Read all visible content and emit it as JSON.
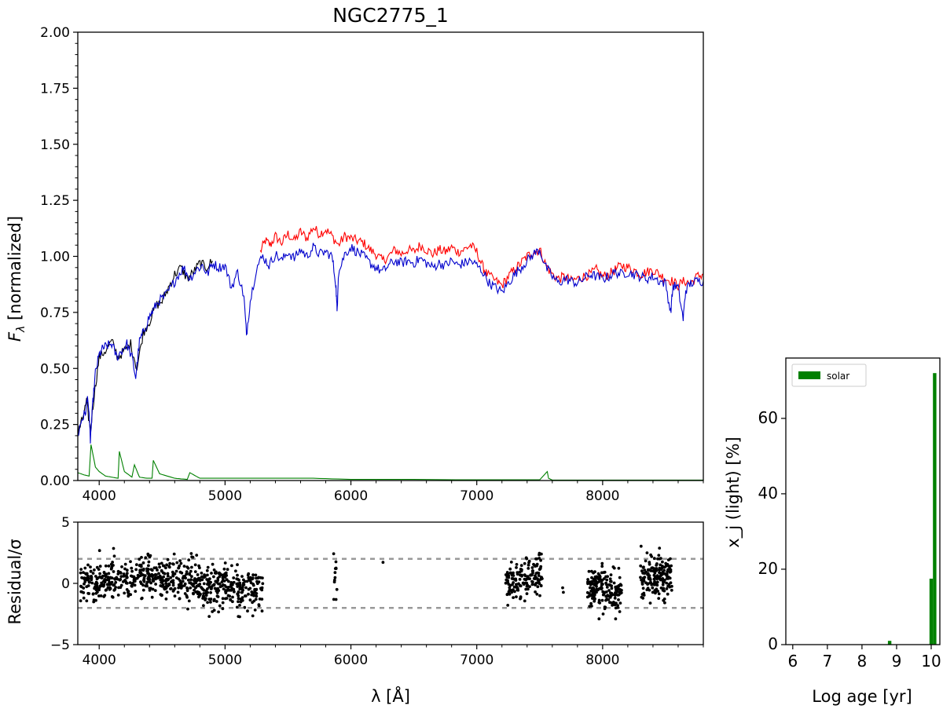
{
  "chart_data": [
    {
      "type": "line",
      "title": "NGC2775_1",
      "xlabel": "",
      "ylabel": "F_λ [normalized]",
      "xlim": [
        3830,
        8800
      ],
      "ylim": [
        0,
        2.0
      ],
      "xticks": [
        4000,
        5000,
        6000,
        7000,
        8000
      ],
      "yticks": [
        0.0,
        0.25,
        0.5,
        0.75,
        1.0,
        1.25,
        1.5,
        1.75,
        2.0
      ],
      "grid": false,
      "series": [
        {
          "color": "#ff0000",
          "role": "observed spectrum (shown where it differs from model)",
          "x": [
            5280,
            5320,
            5360,
            5400,
            5450,
            5500,
            5550,
            5600,
            5650,
            5700,
            5750,
            5800,
            5850,
            5900,
            5950,
            6000,
            6050,
            6100,
            6150,
            6200,
            6250,
            6300,
            6350,
            6400,
            6450,
            6500,
            6550,
            6600,
            6650,
            6700,
            6750,
            6800,
            6850,
            6900,
            6950,
            7000,
            7050,
            7080,
            7150,
            7200,
            7250,
            7300,
            7350,
            7400,
            7450,
            7500,
            7550,
            7600,
            7650,
            7700,
            7750,
            7800,
            7850,
            7900,
            7950,
            8000,
            8050,
            8100,
            8150,
            8200,
            8250,
            8300,
            8350,
            8400,
            8450,
            8500,
            8550,
            8600,
            8650,
            8700,
            8750,
            8800
          ],
          "y": [
            1.02,
            1.07,
            1.05,
            1.09,
            1.06,
            1.1,
            1.07,
            1.11,
            1.08,
            1.13,
            1.1,
            1.12,
            1.09,
            1.05,
            1.09,
            1.08,
            1.07,
            1.06,
            1.03,
            1.01,
            0.98,
            1.0,
            1.03,
            1.01,
            1.03,
            1.02,
            1.05,
            1.03,
            1.01,
            1.03,
            1.02,
            1.04,
            1.02,
            1.03,
            1.05,
            1.02,
            0.95,
            0.92,
            0.89,
            0.87,
            0.91,
            0.94,
            0.97,
            1.0,
            1.02,
            1.03,
            0.96,
            0.92,
            0.9,
            0.91,
            0.89,
            0.9,
            0.91,
            0.92,
            0.94,
            0.91,
            0.92,
            0.94,
            0.96,
            0.95,
            0.94,
            0.92,
            0.93,
            0.94,
            0.92,
            0.9,
            0.89,
            0.87,
            0.89,
            0.88,
            0.91,
            0.92
          ]
        },
        {
          "color": "#000000",
          "role": "observed spectrum",
          "x": [
            3830,
            3860,
            3900,
            3930,
            3960,
            4000,
            4050,
            4100,
            4150,
            4200,
            4250,
            4300,
            4350,
            4400,
            4450,
            4500,
            4550,
            4600,
            4650,
            4700,
            4750,
            4800,
            4850,
            4900
          ],
          "y": [
            0.21,
            0.26,
            0.35,
            0.22,
            0.38,
            0.55,
            0.58,
            0.62,
            0.55,
            0.58,
            0.61,
            0.5,
            0.66,
            0.71,
            0.78,
            0.8,
            0.86,
            0.92,
            0.95,
            0.9,
            0.93,
            0.97,
            0.95,
            0.98
          ]
        },
        {
          "color": "#0000cc",
          "role": "model spectrum",
          "x": [
            3830,
            3860,
            3890,
            3910,
            3930,
            3950,
            3970,
            4000,
            4030,
            4060,
            4100,
            4140,
            4180,
            4220,
            4260,
            4290,
            4320,
            4350,
            4390,
            4430,
            4470,
            4520,
            4570,
            4620,
            4670,
            4720,
            4770,
            4820,
            4860,
            4900,
            4950,
            5000,
            5050,
            5100,
            5150,
            5170,
            5200,
            5250,
            5300,
            5350,
            5400,
            5450,
            5500,
            5550,
            5600,
            5650,
            5700,
            5750,
            5800,
            5850,
            5880,
            5890,
            5900,
            5950,
            6000,
            6050,
            6100,
            6150,
            6200,
            6250,
            6300,
            6350,
            6400,
            6450,
            6500,
            6550,
            6600,
            6650,
            6700,
            6750,
            6800,
            6850,
            6900,
            6950,
            7000,
            7050,
            7100,
            7150,
            7200,
            7250,
            7300,
            7350,
            7400,
            7450,
            7500,
            7550,
            7600,
            7650,
            7700,
            7750,
            7800,
            7850,
            7900,
            7950,
            8000,
            8050,
            8100,
            8150,
            8200,
            8250,
            8300,
            8350,
            8400,
            8450,
            8500,
            8540,
            8560,
            8600,
            8640,
            8660,
            8700,
            8750,
            8800
          ],
          "y": [
            0.2,
            0.27,
            0.3,
            0.38,
            0.18,
            0.35,
            0.48,
            0.56,
            0.59,
            0.6,
            0.61,
            0.55,
            0.58,
            0.61,
            0.55,
            0.46,
            0.62,
            0.66,
            0.72,
            0.76,
            0.8,
            0.82,
            0.86,
            0.91,
            0.95,
            0.9,
            0.94,
            0.96,
            0.92,
            0.97,
            0.95,
            0.96,
            0.86,
            0.93,
            0.82,
            0.65,
            0.8,
            0.95,
            1.0,
            0.96,
            1.01,
            0.98,
            1.02,
            0.99,
            1.03,
            1.0,
            1.04,
            1.01,
            1.02,
            1.0,
            0.88,
            0.75,
            0.92,
            1.01,
            1.04,
            1.02,
            1.0,
            0.97,
            0.95,
            0.93,
            0.96,
            0.98,
            0.97,
            0.98,
            0.97,
            0.99,
            0.97,
            0.95,
            0.97,
            0.96,
            0.98,
            0.96,
            0.97,
            0.98,
            0.96,
            0.93,
            0.88,
            0.86,
            0.84,
            0.88,
            0.92,
            0.95,
            0.98,
            1.01,
            1.03,
            0.95,
            0.91,
            0.88,
            0.9,
            0.89,
            0.88,
            0.9,
            0.92,
            0.91,
            0.9,
            0.91,
            0.93,
            0.92,
            0.93,
            0.92,
            0.91,
            0.9,
            0.91,
            0.89,
            0.88,
            0.75,
            0.87,
            0.86,
            0.72,
            0.85,
            0.88,
            0.89,
            0.89
          ]
        },
        {
          "color": "#008000",
          "role": "emission residual",
          "x": [
            3830,
            3880,
            3920,
            3935,
            3970,
            4000,
            4050,
            4100,
            4150,
            4160,
            4200,
            4260,
            4280,
            4320,
            4380,
            4420,
            4430,
            4480,
            4600,
            4700,
            4720,
            4800,
            5000,
            5200,
            5500,
            5700,
            6000,
            6500,
            7000,
            7500,
            7560,
            7570,
            7600,
            8000,
            8500,
            8800
          ],
          "y": [
            0.035,
            0.025,
            0.02,
            0.16,
            0.06,
            0.04,
            0.02,
            0.015,
            0.01,
            0.13,
            0.04,
            0.015,
            0.07,
            0.015,
            0.01,
            0.01,
            0.09,
            0.03,
            0.01,
            0.005,
            0.035,
            0.01,
            0.01,
            0.01,
            0.01,
            0.01,
            0.005,
            0.005,
            0.003,
            0.003,
            0.04,
            0.01,
            0.002,
            0.002,
            0.002,
            0.002
          ]
        }
      ]
    },
    {
      "type": "scatter",
      "title": "",
      "xlabel": "λ [Å]",
      "ylabel": "Residual/σ",
      "xlim": [
        3830,
        8800
      ],
      "ylim": [
        -5,
        5
      ],
      "xticks": [
        4000,
        5000,
        6000,
        7000,
        8000
      ],
      "yticks": [
        -5,
        0,
        5
      ],
      "reference_lines": [
        2,
        -2
      ],
      "clusters": [
        {
          "x_range": [
            3850,
            5300
          ],
          "y_spread": 1.4,
          "y_trend": [
            0.1,
            0.2,
            0.4,
            0.3,
            -0.3,
            -0.5
          ],
          "count": 700
        },
        {
          "x_range": [
            5860,
            5890
          ],
          "y_spread": 1.5,
          "y_trend": [
            0.5
          ],
          "count": 12
        },
        {
          "x_range": [
            6250,
            6260
          ],
          "y_spread": 0.1,
          "y_trend": [
            1.7
          ],
          "count": 1
        },
        {
          "x_range": [
            7230,
            7520
          ],
          "y_spread": 1.4,
          "y_trend": [
            0.2,
            0.6
          ],
          "count": 150
        },
        {
          "x_range": [
            7680,
            7700
          ],
          "y_spread": 0.2,
          "y_trend": [
            -0.5
          ],
          "count": 2
        },
        {
          "x_range": [
            7880,
            8150
          ],
          "y_spread": 1.3,
          "y_trend": [
            -0.3,
            -0.7
          ],
          "count": 170
        },
        {
          "x_range": [
            8300,
            8550
          ],
          "y_spread": 1.4,
          "y_trend": [
            0.3,
            0.6
          ],
          "count": 170
        }
      ]
    },
    {
      "type": "bar",
      "title": "",
      "xlabel": "Log age [yr]",
      "ylabel": "x_j (light) [%]",
      "xlim": [
        5.8,
        10.25
      ],
      "ylim": [
        0,
        76
      ],
      "xticks": [
        6,
        7,
        8,
        9,
        10
      ],
      "yticks": [
        0,
        20,
        40,
        60
      ],
      "legend": {
        "position": "top-left",
        "entries": [
          "solar"
        ]
      },
      "series": [
        {
          "name": "solar",
          "color": "#008000",
          "x": [
            8.8,
            10.0,
            10.1
          ],
          "values": [
            1.0,
            17.5,
            72.0
          ]
        }
      ]
    }
  ]
}
